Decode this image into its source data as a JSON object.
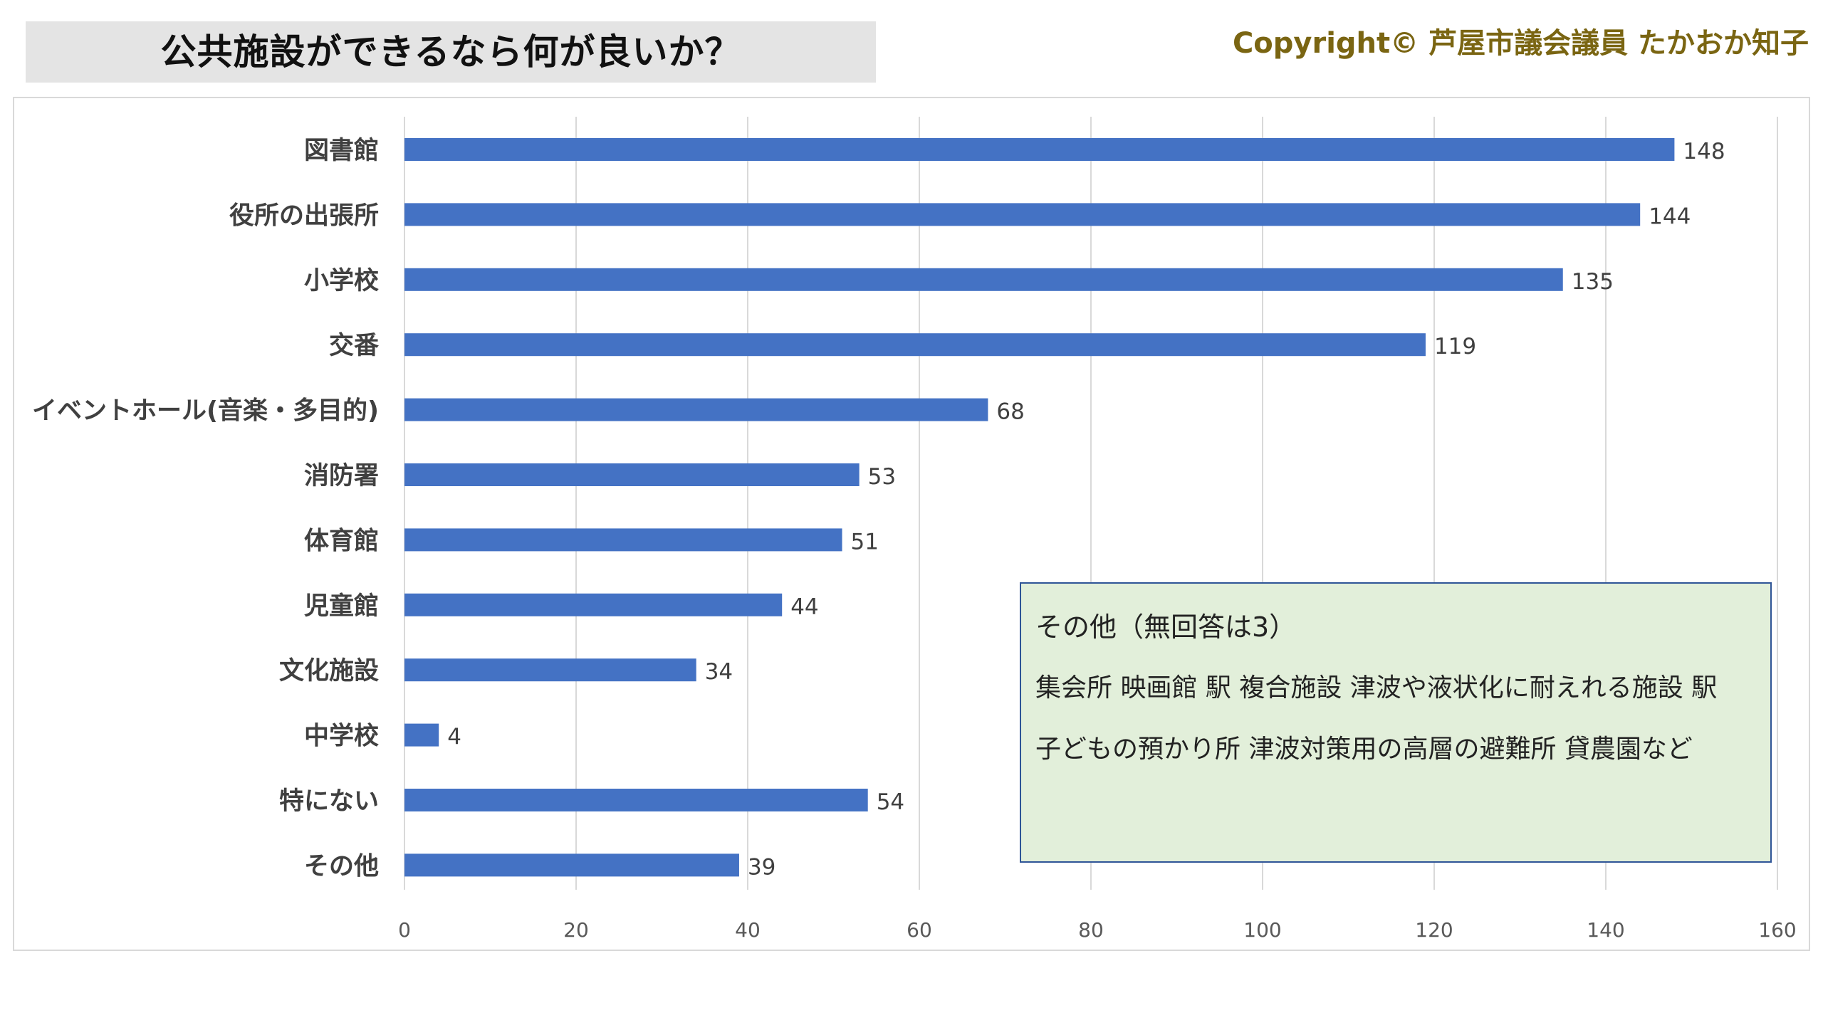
{
  "header": {
    "title": "公共施設ができるなら何が良いか？",
    "copyright": "Copyright© 芦屋市議会議員 たかおか知子"
  },
  "chart_data": {
    "type": "bar",
    "orientation": "horizontal",
    "categories": [
      "図書館",
      "役所の出張所",
      "小学校",
      "交番",
      "イベントホール(音楽・多目的)",
      "消防署",
      "体育館",
      "児童館",
      "文化施設",
      "中学校",
      "特にない",
      "その他"
    ],
    "values": [
      148,
      144,
      135,
      119,
      68,
      53,
      51,
      44,
      34,
      4,
      54,
      39
    ],
    "xlim": [
      0,
      160
    ],
    "xticks": [
      0,
      20,
      40,
      60,
      80,
      100,
      120,
      140,
      160
    ],
    "grid": true,
    "bar_color": "#4472c4",
    "data_labels": true
  },
  "note": {
    "title": "その他（無回答は3）",
    "lines": [
      "集会所 映画館 駅 複合施設 津波や液状化に耐えれる施設 駅",
      "子どもの預かり所 津波対策用の高層の避難所 貸農園など"
    ]
  }
}
